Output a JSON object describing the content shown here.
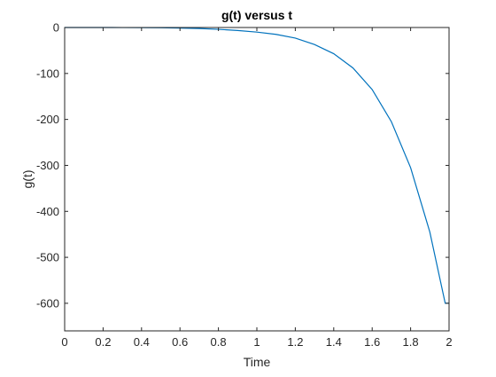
{
  "chart_data": {
    "type": "line",
    "title": "g(t) versus t",
    "xlabel": "Time",
    "ylabel": "g(t)",
    "xlim": [
      0,
      2
    ],
    "ylim": [
      -660,
      0
    ],
    "xticks": [
      0,
      0.2,
      0.4,
      0.6,
      0.8,
      1,
      1.2,
      1.4,
      1.6,
      1.8,
      2
    ],
    "xtick_labels": [
      "0",
      "0.2",
      "0.4",
      "0.6",
      "0.8",
      "1",
      "1.2",
      "1.4",
      "1.6",
      "1.8",
      "2"
    ],
    "yticks": [
      0,
      -100,
      -200,
      -300,
      -400,
      -500,
      -600
    ],
    "ytick_labels": [
      "0",
      "-100",
      "-200",
      "-300",
      "-400",
      "-500",
      "-600"
    ],
    "grid": false,
    "series": [
      {
        "color": "#0072bd",
        "x": [
          0,
          0.1,
          0.2,
          0.3,
          0.4,
          0.5,
          0.6,
          0.7,
          0.8,
          0.9,
          1.0,
          1.1,
          1.2,
          1.3,
          1.4,
          1.5,
          1.6,
          1.7,
          1.8,
          1.9,
          1.98,
          2.0
        ],
        "y": [
          0,
          0,
          0,
          -0.1,
          -0.3,
          -0.6,
          -1.2,
          -2.2,
          -4,
          -6.5,
          -10,
          -15,
          -23,
          -37,
          -57,
          -88,
          -135,
          -205,
          -305,
          -445,
          -600,
          -600
        ]
      }
    ]
  }
}
